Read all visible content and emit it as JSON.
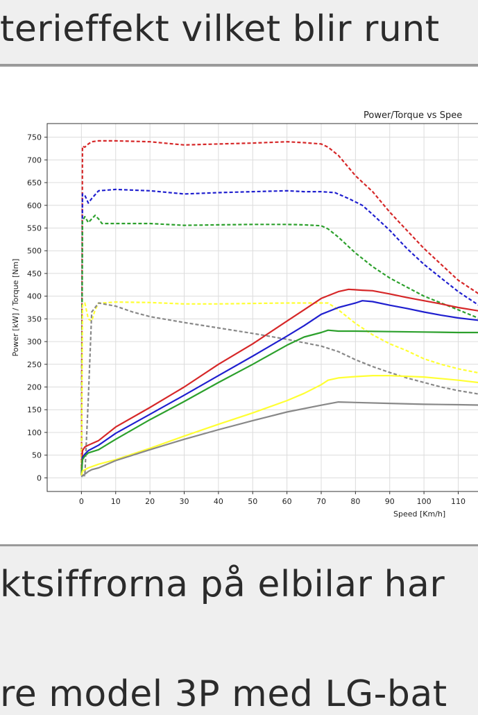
{
  "page": {
    "top_text": "terieffekt vilket blir runt",
    "bottom_line_1": "ktsiffrorna på elbilar har",
    "bottom_line_2": "re model 3P med LG-bat"
  },
  "chart_data": {
    "type": "line",
    "title": "Power/Torque vs Spee",
    "xlabel": "Speed [Km/h]",
    "ylabel": "Power [kW] / Torque [Nm]",
    "xlim": [
      -10,
      118
    ],
    "ylim": [
      -30,
      780
    ],
    "grid": true,
    "x_ticks": [
      0,
      10,
      20,
      30,
      40,
      50,
      60,
      70,
      80,
      90,
      100,
      110
    ],
    "x_tick_labels": [
      "0",
      "10",
      "20",
      "30",
      "40",
      "50",
      "60",
      "70",
      "80",
      "90",
      "100",
      "110"
    ],
    "y_ticks": [
      0,
      50,
      100,
      150,
      200,
      250,
      300,
      350,
      400,
      450,
      500,
      550,
      600,
      650,
      700,
      750
    ],
    "y_tick_labels": [
      "0",
      "50",
      "100",
      "150",
      "200",
      "250",
      "300",
      "350",
      "400",
      "450",
      "500",
      "550",
      "600",
      "650",
      "700",
      "750"
    ],
    "series": [
      {
        "color": "#d62728",
        "style": "dashed",
        "kind": "torque",
        "x": [
          0,
          0.3,
          1,
          2,
          3,
          5,
          10,
          20,
          30,
          40,
          50,
          60,
          65,
          70,
          72,
          75,
          80,
          85,
          90,
          95,
          100,
          105,
          110,
          118
        ],
        "y": [
          10,
          730,
          728,
          735,
          740,
          742,
          742,
          740,
          733,
          735,
          737,
          740,
          738,
          735,
          728,
          710,
          665,
          630,
          585,
          545,
          505,
          470,
          435,
          395
        ]
      },
      {
        "color": "#1f1fcf",
        "style": "dashed",
        "kind": "torque",
        "x": [
          0,
          0.3,
          1,
          2,
          3,
          5,
          10,
          20,
          30,
          40,
          50,
          60,
          65,
          70,
          74,
          78,
          82,
          85,
          90,
          95,
          100,
          105,
          110,
          118
        ],
        "y": [
          20,
          625,
          622,
          605,
          615,
          632,
          635,
          632,
          625,
          628,
          630,
          632,
          630,
          630,
          628,
          615,
          600,
          580,
          545,
          505,
          470,
          440,
          410,
          370
        ]
      },
      {
        "color": "#2ca02c",
        "style": "dashed",
        "kind": "torque",
        "x": [
          0,
          0.3,
          1,
          2,
          3,
          4,
          5,
          6,
          10,
          20,
          30,
          40,
          50,
          60,
          65,
          70,
          72,
          75,
          80,
          85,
          90,
          95,
          100,
          105,
          110,
          118
        ],
        "y": [
          20,
          565,
          575,
          562,
          570,
          578,
          570,
          560,
          560,
          560,
          556,
          557,
          558,
          558,
          557,
          555,
          548,
          530,
          495,
          465,
          440,
          420,
          400,
          385,
          370,
          345
        ]
      },
      {
        "color": "#ffff33",
        "style": "dashed",
        "kind": "torque",
        "x": [
          0,
          0.3,
          1,
          2,
          3,
          4,
          5,
          6,
          10,
          20,
          30,
          40,
          50,
          60,
          65,
          70,
          72,
          75,
          80,
          85,
          90,
          95,
          100,
          105,
          110,
          118
        ],
        "y": [
          20,
          380,
          385,
          350,
          345,
          370,
          385,
          385,
          387,
          386,
          383,
          383,
          384,
          385,
          385,
          385,
          385,
          370,
          340,
          315,
          295,
          280,
          262,
          250,
          240,
          228
        ]
      },
      {
        "color": "#888888",
        "style": "dashed",
        "kind": "torque",
        "x": [
          0,
          1,
          2,
          3,
          5,
          10,
          15,
          20,
          30,
          40,
          50,
          60,
          70,
          75,
          80,
          85,
          90,
          95,
          100,
          105,
          110,
          118
        ],
        "y": [
          5,
          5,
          175,
          365,
          385,
          378,
          365,
          355,
          342,
          330,
          318,
          305,
          290,
          278,
          260,
          245,
          232,
          220,
          210,
          200,
          192,
          182
        ]
      },
      {
        "color": "#d62728",
        "style": "solid",
        "kind": "power",
        "x": [
          0,
          0.3,
          1,
          2,
          5,
          10,
          20,
          30,
          40,
          50,
          60,
          65,
          70,
          75,
          78,
          82,
          85,
          90,
          95,
          100,
          105,
          110,
          118
        ],
        "y": [
          5,
          60,
          68,
          72,
          82,
          112,
          155,
          200,
          250,
          295,
          345,
          370,
          395,
          410,
          415,
          413,
          412,
          405,
          397,
          390,
          383,
          375,
          365
        ]
      },
      {
        "color": "#1f1fcf",
        "style": "solid",
        "kind": "power",
        "x": [
          0,
          0.3,
          1,
          2,
          5,
          10,
          20,
          30,
          40,
          50,
          60,
          65,
          70,
          75,
          80,
          82,
          85,
          90,
          95,
          100,
          105,
          110,
          118
        ],
        "y": [
          5,
          45,
          52,
          60,
          72,
          98,
          140,
          182,
          225,
          268,
          312,
          335,
          360,
          375,
          385,
          390,
          388,
          380,
          373,
          365,
          358,
          352,
          345
        ]
      },
      {
        "color": "#2ca02c",
        "style": "solid",
        "kind": "power",
        "x": [
          0,
          0.3,
          1,
          2,
          5,
          10,
          20,
          30,
          40,
          50,
          60,
          65,
          70,
          72,
          75,
          80,
          90,
          100,
          110,
          118
        ],
        "y": [
          5,
          40,
          48,
          55,
          62,
          85,
          128,
          168,
          210,
          250,
          292,
          310,
          320,
          325,
          323,
          323,
          322,
          321,
          320,
          320
        ]
      },
      {
        "color": "#ffff33",
        "style": "solid",
        "kind": "power",
        "x": [
          0,
          0.3,
          1,
          2,
          5,
          10,
          20,
          30,
          40,
          50,
          60,
          65,
          70,
          72,
          75,
          80,
          85,
          90,
          100,
          110,
          118
        ],
        "y": [
          5,
          15,
          18,
          22,
          30,
          40,
          65,
          92,
          118,
          143,
          170,
          186,
          205,
          215,
          220,
          223,
          225,
          225,
          222,
          215,
          208
        ]
      },
      {
        "color": "#888888",
        "style": "solid",
        "kind": "power",
        "x": [
          0,
          0.3,
          1,
          2,
          3,
          5,
          10,
          20,
          30,
          40,
          50,
          60,
          70,
          75,
          80,
          90,
          100,
          110,
          118
        ],
        "y": [
          2,
          5,
          8,
          14,
          18,
          22,
          38,
          62,
          85,
          106,
          126,
          145,
          160,
          167,
          166,
          164,
          162,
          161,
          160
        ]
      }
    ]
  }
}
